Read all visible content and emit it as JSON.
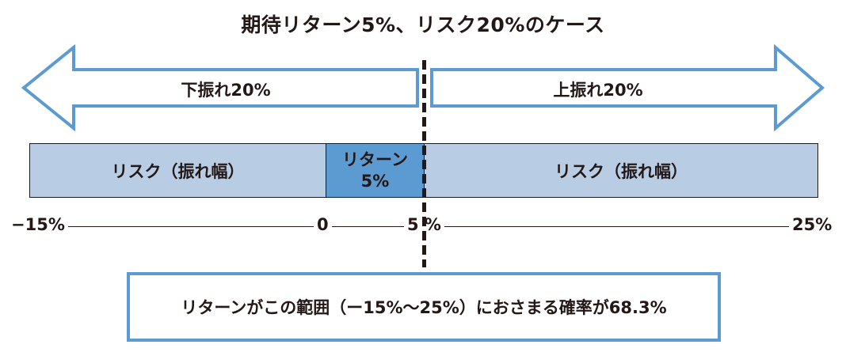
{
  "title": "期待リターン5%、リスク20%のケース",
  "arrows": {
    "left_label": "下振れ20%",
    "right_label": "上振れ20%"
  },
  "bar": {
    "risk_left": "リスク（振れ幅）",
    "return_line1": "リターン",
    "return_line2": "5%",
    "risk_right": "リスク（振れ幅）"
  },
  "axis": {
    "tick_left": "−15%",
    "tick_zero": "0",
    "tick_five": "5 %",
    "tick_right": "25%"
  },
  "note": "リターンがこの範囲（ー15%〜25%）におさまる確率が68.3%",
  "colors": {
    "risk_fill": "#b8cde4",
    "return_fill": "#5b9bd2",
    "arrow_stroke": "#5b9bd2",
    "text": "#231815"
  }
}
